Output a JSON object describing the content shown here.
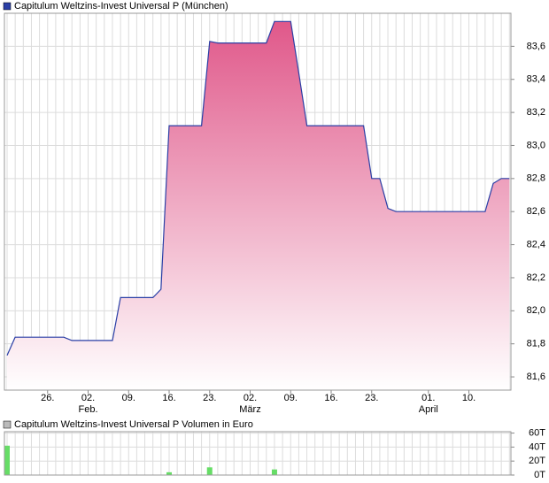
{
  "chart_data": [
    {
      "type": "area",
      "title": "Capitulum Weltzins-Invest Universal P (München)",
      "categories": [
        null,
        null,
        null,
        null,
        null,
        "26.",
        null,
        null,
        null,
        null,
        "02.",
        null,
        null,
        null,
        null,
        "09.",
        null,
        null,
        null,
        null,
        "16.",
        null,
        null,
        null,
        null,
        "23.",
        null,
        null,
        null,
        null,
        "02.",
        null,
        null,
        null,
        null,
        "09.",
        null,
        null,
        null,
        null,
        "16.",
        null,
        null,
        null,
        null,
        "23.",
        null,
        null,
        null,
        null,
        null,
        null,
        "01.",
        null,
        null,
        null,
        null,
        "10.",
        null,
        null,
        null,
        null,
        null
      ],
      "months": [
        null,
        null,
        null,
        null,
        null,
        null,
        null,
        null,
        null,
        null,
        "Feb.",
        null,
        null,
        null,
        null,
        null,
        null,
        null,
        null,
        null,
        null,
        null,
        null,
        null,
        null,
        null,
        null,
        null,
        null,
        null,
        "März",
        null,
        null,
        null,
        null,
        null,
        null,
        null,
        null,
        null,
        null,
        null,
        null,
        null,
        null,
        null,
        null,
        null,
        null,
        null,
        null,
        null,
        "April",
        null,
        null,
        null,
        null,
        null,
        null,
        null,
        null,
        null,
        null
      ],
      "series": [
        {
          "name": "Capitulum Weltzins-Invest Universal P",
          "color": "#2a3fa6",
          "values": [
            81.73,
            81.84,
            81.84,
            81.84,
            81.84,
            81.84,
            81.84,
            81.84,
            81.82,
            81.82,
            81.82,
            81.82,
            81.82,
            81.82,
            82.08,
            82.08,
            82.08,
            82.08,
            82.08,
            82.13,
            83.12,
            83.12,
            83.12,
            83.12,
            83.12,
            83.63,
            83.62,
            83.62,
            83.62,
            83.62,
            83.62,
            83.62,
            83.62,
            83.75,
            83.75,
            83.75,
            83.44,
            83.12,
            83.12,
            83.12,
            83.12,
            83.12,
            83.12,
            83.12,
            83.12,
            82.8,
            82.8,
            82.62,
            82.6,
            82.6,
            82.6,
            82.6,
            82.6,
            82.6,
            82.6,
            82.6,
            82.6,
            82.6,
            82.6,
            82.6,
            82.77,
            82.8,
            82.8
          ]
        }
      ],
      "ylim": [
        81.52,
        83.8
      ],
      "yticks": [
        {
          "value": 81.6,
          "label": "81,6"
        },
        {
          "value": 81.8,
          "label": "81,8"
        },
        {
          "value": 82.0,
          "label": "82,0"
        },
        {
          "value": 82.2,
          "label": "82,2"
        },
        {
          "value": 82.4,
          "label": "82,4"
        },
        {
          "value": 82.6,
          "label": "82,6"
        },
        {
          "value": 82.8,
          "label": "82,8"
        },
        {
          "value": 83.0,
          "label": "83,0"
        },
        {
          "value": 83.2,
          "label": "83,2"
        },
        {
          "value": 83.4,
          "label": "83,4"
        },
        {
          "value": 83.6,
          "label": "83,6"
        }
      ],
      "grid": true
    },
    {
      "type": "bar",
      "title": "Capitulum Weltzins-Invest Universal P Volumen in Euro",
      "color": "#66dd66",
      "values": [
        42,
        0,
        0,
        0,
        0,
        0,
        0,
        0,
        0,
        0,
        0,
        0,
        0,
        0,
        0,
        0,
        0,
        0,
        0,
        0,
        4,
        0,
        0,
        0,
        0,
        11,
        0,
        0,
        0,
        0,
        0,
        0,
        0,
        8,
        0,
        0,
        0,
        0,
        0,
        0,
        0,
        0,
        0,
        0,
        0,
        0,
        0,
        0,
        0,
        0,
        0,
        0,
        0,
        0,
        0,
        0,
        0,
        0,
        0,
        0,
        0,
        0,
        0
      ],
      "ylim": [
        0,
        62
      ],
      "yticks": [
        {
          "value": 0,
          "label": "0T"
        },
        {
          "value": 20,
          "label": "20T"
        },
        {
          "value": 40,
          "label": "40T"
        },
        {
          "value": 60,
          "label": "60T"
        }
      ],
      "grid": true
    }
  ]
}
